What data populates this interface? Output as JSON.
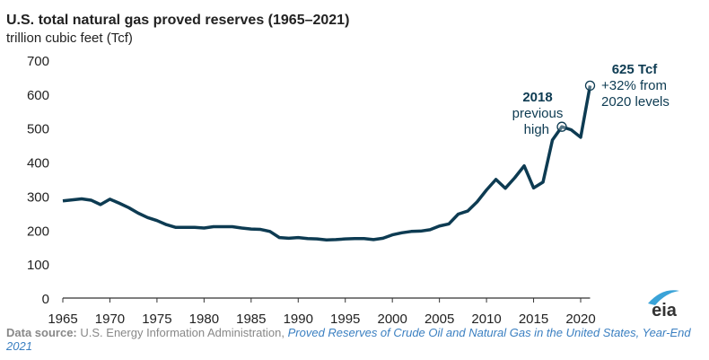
{
  "chart_data": {
    "type": "line",
    "title": "U.S. total natural gas proved reserves (1965–2021)",
    "ylabel": "trillion cubic feet (Tcf)",
    "xlabel": "",
    "ylim": [
      0,
      700
    ],
    "xlim": [
      1965,
      2021
    ],
    "yticks": [
      0,
      100,
      200,
      300,
      400,
      500,
      600,
      700
    ],
    "xticks": [
      1965,
      1970,
      1975,
      1980,
      1985,
      1990,
      1995,
      2000,
      2005,
      2010,
      2015,
      2020
    ],
    "grid": false,
    "line_color": "#0d3b52",
    "series": [
      {
        "name": "Proved reserves",
        "x": [
          1965,
          1966,
          1967,
          1968,
          1969,
          1970,
          1971,
          1972,
          1973,
          1974,
          1975,
          1976,
          1977,
          1978,
          1979,
          1980,
          1981,
          1982,
          1983,
          1984,
          1985,
          1986,
          1987,
          1988,
          1989,
          1990,
          1991,
          1992,
          1993,
          1994,
          1995,
          1996,
          1997,
          1998,
          1999,
          2000,
          2001,
          2002,
          2003,
          2004,
          2005,
          2006,
          2007,
          2008,
          2009,
          2010,
          2011,
          2012,
          2013,
          2014,
          2015,
          2016,
          2017,
          2018,
          2019,
          2020,
          2021
        ],
        "values": [
          286,
          289,
          292,
          288,
          275,
          291,
          279,
          266,
          250,
          237,
          228,
          216,
          208,
          208,
          208,
          206,
          210,
          210,
          210,
          206,
          203,
          202,
          196,
          178,
          176,
          178,
          175,
          174,
          171,
          172,
          174,
          175,
          175,
          172,
          176,
          186,
          192,
          196,
          197,
          201,
          212,
          218,
          247,
          256,
          283,
          318,
          349,
          323,
          354,
          389,
          324,
          341,
          465,
          504,
          495,
          473,
          625
        ]
      }
    ],
    "annotations": [
      {
        "x": 2018,
        "y": 504,
        "bold": "2018",
        "lines": [
          "previous",
          "high"
        ]
      },
      {
        "x": 2021,
        "y": 625,
        "bold": "625 Tcf",
        "lines": [
          "+32% from",
          "2020 levels"
        ]
      }
    ]
  },
  "footer": {
    "label": "Data source:",
    "source": "U.S. Energy Information Administration,",
    "link": "Proved Reserves of Crude Oil and Natural Gas in the United States, Year-End 2021"
  },
  "logo": "eia"
}
